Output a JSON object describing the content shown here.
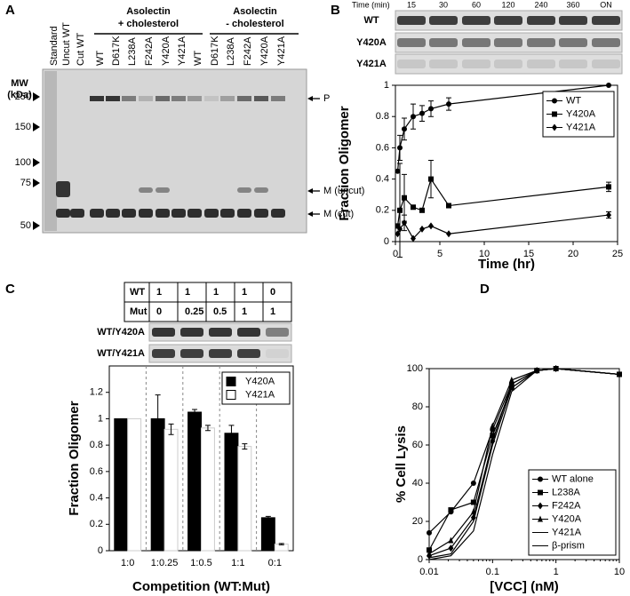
{
  "panel_labels": [
    "A",
    "B",
    "C",
    "D"
  ],
  "gel_a": {
    "lanes": [
      "Standard",
      "Uncut WT",
      "Cut WT",
      "WT",
      "D617K",
      "L238A",
      "F242A",
      "Y420A",
      "Y421A",
      "WT",
      "D617K",
      "L238A",
      "F242A",
      "Y420A",
      "Y421A"
    ],
    "group_labels": [
      [
        "Asolectin",
        "+ cholesterol"
      ],
      [
        "Asolectin",
        "- cholesterol"
      ]
    ],
    "mw_title": [
      "MW",
      "(kDa)"
    ],
    "mw_markers": [
      250,
      150,
      100,
      75,
      50
    ],
    "band_labels": [
      "P",
      "M (uncut)",
      "M (cut)"
    ]
  },
  "gel_b": {
    "time_title": "Time (min)",
    "times": [
      "15",
      "30",
      "60",
      "120",
      "240",
      "360",
      "ON"
    ],
    "rows": [
      "WT",
      "Y420A",
      "Y421A"
    ]
  },
  "gel_c": {
    "table": {
      "rows": [
        [
          "WT",
          1,
          1,
          1,
          1,
          0
        ],
        [
          "Mut",
          0,
          0.25,
          0.5,
          1,
          1
        ]
      ]
    },
    "rows": [
      "WT/Y420A",
      "WT/Y421A"
    ]
  },
  "chart_data": [
    {
      "type": "line",
      "xlabel": "Time (hr)",
      "ylabel": "Fraction Oligomer",
      "xlim": [
        0,
        25
      ],
      "xticks": [
        0,
        5,
        10,
        15,
        20,
        25
      ],
      "ylim": [
        0,
        1
      ],
      "yticks": [
        0,
        0.2,
        0.4,
        0.6,
        0.8,
        1
      ],
      "legend": "upper right",
      "series": [
        {
          "name": "WT",
          "color": "#000000",
          "marker": "circle",
          "x": [
            0.25,
            0.5,
            1,
            2,
            3,
            4,
            6,
            24
          ],
          "values": [
            0.45,
            0.6,
            0.72,
            0.8,
            0.82,
            0.85,
            0.88,
            1.0
          ],
          "errors": [
            null,
            0.08,
            0.07,
            0.08,
            0.05,
            0.05,
            0.04,
            null
          ]
        },
        {
          "name": "Y420A",
          "color": "#000000",
          "marker": "square",
          "x": [
            0.25,
            0.5,
            1,
            2,
            3,
            4,
            6,
            24
          ],
          "values": [
            0.1,
            0.2,
            0.28,
            0.22,
            0.2,
            0.4,
            0.23,
            0.35
          ],
          "errors": [
            null,
            0.3,
            0.15,
            null,
            null,
            0.12,
            null,
            0.03
          ]
        },
        {
          "name": "Y421A",
          "color": "#000000",
          "marker": "diamond",
          "x": [
            0.25,
            0.5,
            1,
            2,
            3,
            4,
            6,
            24
          ],
          "values": [
            0.05,
            0.08,
            0.12,
            0.02,
            0.08,
            0.1,
            0.05,
            0.17
          ],
          "errors": [
            null,
            null,
            0.05,
            null,
            null,
            null,
            null,
            0.02
          ]
        }
      ]
    },
    {
      "type": "bar",
      "xlabel": "Competition (WT:Mut)",
      "ylabel": "Fraction Oligomer",
      "categories": [
        "1:0",
        "1:0.25",
        "1:0.5",
        "1:1",
        "0:1"
      ],
      "ylim": [
        0,
        1.4
      ],
      "yticks": [
        0,
        0.2,
        0.4,
        0.6,
        0.8,
        1,
        1.2
      ],
      "legend": "upper right",
      "series": [
        {
          "name": "Y420A",
          "color": "#000000",
          "values": [
            1,
            1,
            1.05,
            0.89,
            0.25
          ],
          "errors": [
            null,
            0.18,
            0.02,
            0.06,
            0.01
          ]
        },
        {
          "name": "Y421A",
          "color": "#ffffff",
          "values": [
            1,
            0.92,
            0.93,
            0.79,
            0.05
          ],
          "errors": [
            null,
            0.04,
            0.02,
            0.02,
            0.005
          ]
        }
      ]
    },
    {
      "type": "line",
      "xscale": "log",
      "xlabel": "[VCC] (nM)",
      "ylabel": "% Cell Lysis",
      "xlim": [
        0.01,
        10
      ],
      "xticks": [
        0.01,
        0.1,
        1,
        10
      ],
      "ylim": [
        0,
        100
      ],
      "yticks": [
        0,
        20,
        40,
        60,
        80,
        100
      ],
      "legend": "lower right",
      "series": [
        {
          "name": "WT alone",
          "color": "#000000",
          "marker": "circle",
          "x": [
            0.01,
            0.022,
            0.05,
            0.1,
            0.2,
            0.5,
            1,
            10
          ],
          "values": [
            14,
            25,
            40,
            68,
            92,
            99,
            100,
            97
          ]
        },
        {
          "name": "L238A",
          "color": "#000000",
          "marker": "square",
          "x": [
            0.01,
            0.022,
            0.05,
            0.1,
            0.2,
            0.5,
            1,
            10
          ],
          "values": [
            5,
            26,
            30,
            65,
            90,
            99,
            100,
            97
          ]
        },
        {
          "name": "F242A",
          "color": "#000000",
          "marker": "diamond",
          "x": [
            0.01,
            0.022,
            0.05,
            0.1,
            0.2,
            0.5,
            1,
            10
          ],
          "values": [
            2,
            6,
            22,
            62,
            92,
            99,
            100,
            97
          ]
        },
        {
          "name": "Y420A",
          "color": "#000000",
          "marker": "triangle",
          "x": [
            0.01,
            0.022,
            0.05,
            0.1,
            0.2,
            0.5,
            1,
            10
          ],
          "values": [
            3,
            10,
            25,
            70,
            94,
            99,
            100,
            97
          ]
        },
        {
          "name": "Y421A",
          "color": "#000000",
          "marker": "none",
          "x": [
            0.01,
            0.022,
            0.05,
            0.1,
            0.2,
            0.5,
            1,
            10
          ],
          "values": [
            1,
            3,
            20,
            60,
            90,
            99,
            100,
            97
          ]
        },
        {
          "name": "β-prism",
          "color": "#000000",
          "marker": "none",
          "x": [
            0.01,
            0.022,
            0.05,
            0.1,
            0.2,
            0.5,
            1,
            10
          ],
          "values": [
            0,
            2,
            15,
            55,
            88,
            99,
            100,
            97
          ]
        }
      ]
    }
  ]
}
